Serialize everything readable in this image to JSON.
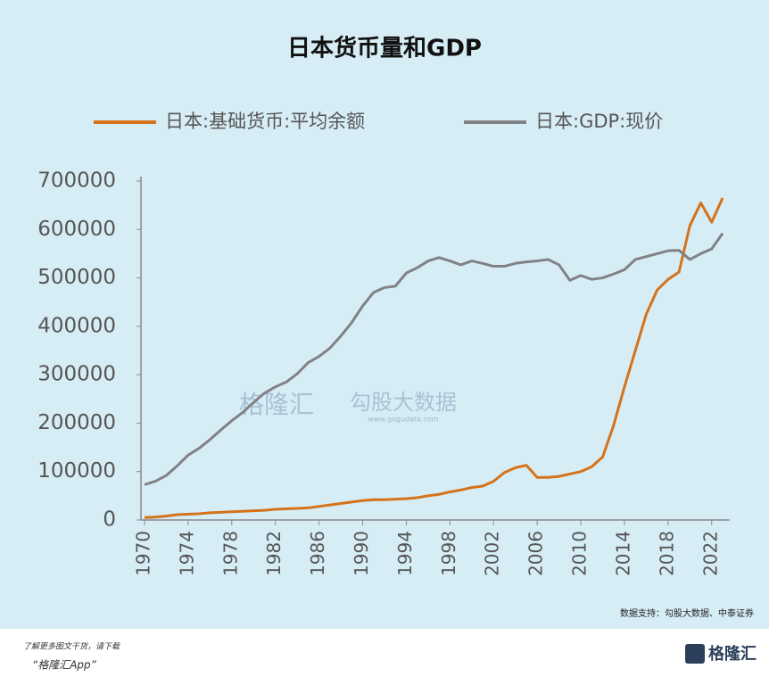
{
  "chart_data": {
    "type": "line",
    "title": "日本货币量和GDP",
    "x": [
      1970,
      1971,
      1972,
      1973,
      1974,
      1975,
      1976,
      1977,
      1978,
      1979,
      1980,
      1981,
      1982,
      1983,
      1984,
      1985,
      1986,
      1987,
      1988,
      1989,
      1990,
      1991,
      1992,
      1993,
      1994,
      1995,
      1996,
      1997,
      1998,
      1999,
      2000,
      2001,
      2002,
      2003,
      2004,
      2005,
      2006,
      2007,
      2008,
      2009,
      2010,
      2011,
      2012,
      2013,
      2014,
      2015,
      2016,
      2017,
      2018,
      2019,
      2020,
      2021,
      2022,
      2023
    ],
    "series": [
      {
        "name": "日本:基础货币:平均余额",
        "color": "#d4731b",
        "values": [
          5000,
          6000,
          8000,
          11000,
          12000,
          13000,
          15000,
          16000,
          17000,
          18000,
          19000,
          20000,
          22000,
          23000,
          24000,
          25000,
          28000,
          31000,
          34000,
          37000,
          40000,
          42000,
          42000,
          43000,
          44000,
          46000,
          50000,
          53000,
          58000,
          62000,
          67000,
          70000,
          80000,
          98000,
          108000,
          113000,
          88000,
          88000,
          90000,
          95000,
          100000,
          110000,
          130000,
          195000,
          275000,
          350000,
          425000,
          475000,
          497000,
          512000,
          608000,
          655000,
          615000,
          665000
        ]
      },
      {
        "name": "日本:GDP:现价",
        "color": "#808285",
        "values": [
          73000,
          80000,
          92000,
          112000,
          134000,
          148000,
          166000,
          186000,
          205000,
          222000,
          243000,
          262000,
          275000,
          285000,
          302000,
          325000,
          338000,
          355000,
          380000,
          408000,
          442000,
          470000,
          480000,
          483000,
          510000,
          521000,
          535000,
          542000,
          535000,
          527000,
          535000,
          530000,
          524000,
          524000,
          530000,
          533000,
          535000,
          538000,
          527000,
          495000,
          505000,
          497000,
          500000,
          508000,
          517000,
          538000,
          544000,
          550000,
          556000,
          557000,
          538000,
          550000,
          560000,
          592000
        ]
      }
    ],
    "xlim": [
      1970,
      2023
    ],
    "xticks": [
      1970,
      1974,
      1978,
      1982,
      1986,
      1990,
      1994,
      1998,
      2002,
      2006,
      2010,
      2014,
      2018,
      2022
    ],
    "ylim": [
      0,
      700000
    ],
    "yticks": [
      0,
      100000,
      200000,
      300000,
      400000,
      500000,
      600000,
      700000
    ],
    "grid": false
  },
  "watermark": [
    "格隆汇",
    "勾股大数据",
    "www.gogudata.com"
  ],
  "source": "数据支持：勾股大数据、中泰证券",
  "footer": {
    "line1": "了解更多图文干货，请下载",
    "line2": "“格隆汇App”",
    "logo": "格隆汇"
  }
}
